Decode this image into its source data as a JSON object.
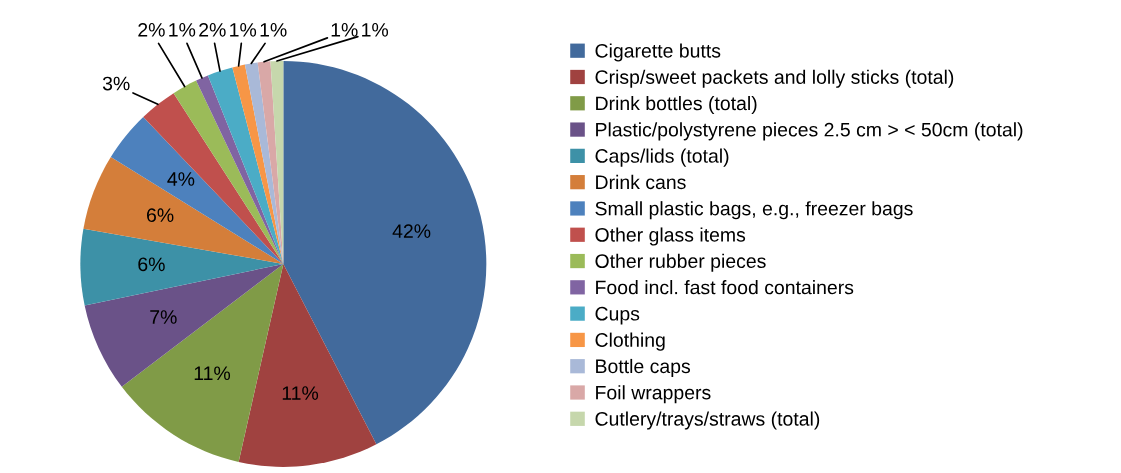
{
  "chart_data": {
    "type": "pie",
    "categories": [
      "Cigarette butts",
      "Crisp/sweet packets and lolly sticks (total)",
      "Drink bottles (total)",
      "Plastic/polystyrene pieces 2.5 cm > < 50cm (total)",
      "Caps/lids (total)",
      "Drink cans",
      "Small plastic bags, e.g., freezer bags",
      "Other glass items",
      "Other rubber pieces",
      "Food incl. fast food containers",
      "Cups",
      "Clothing",
      "Bottle caps",
      "Foil wrappers",
      "Cutlery/trays/straws (total)"
    ],
    "values": [
      42,
      11,
      11,
      7,
      6,
      6,
      4,
      3,
      2,
      1,
      2,
      1,
      1,
      1,
      1
    ],
    "colors": [
      "#426a9c",
      "#a04240",
      "#809b47",
      "#6a5288",
      "#3d91a7",
      "#d47e3a",
      "#4d81bd",
      "#c0504d",
      "#9bbb59",
      "#8064a2",
      "#4bacc6",
      "#f79646",
      "#a9b9d8",
      "#d9a8a7",
      "#c6d7ac"
    ],
    "value_labels": [
      "42%",
      "11%",
      "11%",
      "7%",
      "6%",
      "6%",
      "4%",
      "3%",
      "2%",
      "1%",
      "2%",
      "1%",
      "1%",
      "1%",
      "1%"
    ],
    "legend": "right"
  }
}
